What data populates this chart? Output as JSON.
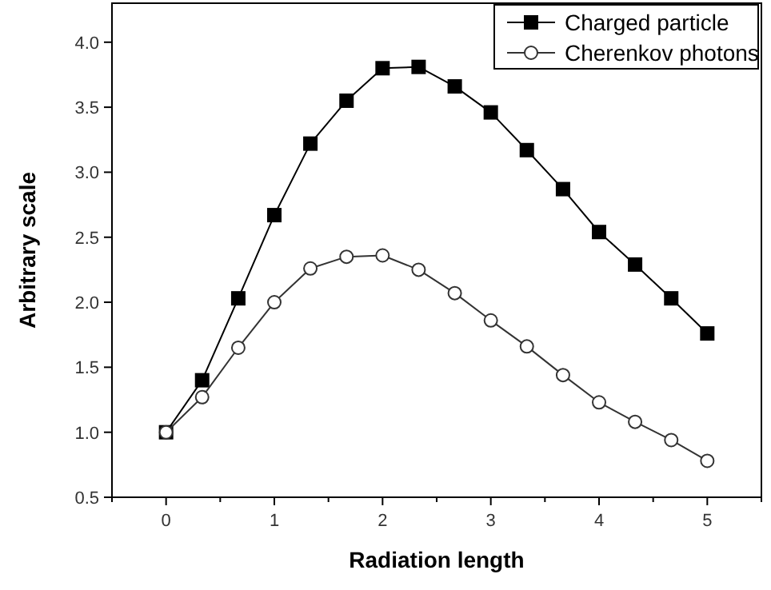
{
  "chart_data": {
    "type": "line",
    "xlabel": "Radiation length",
    "ylabel": "Arbitrary scale",
    "xlim": [
      -0.5,
      5.5
    ],
    "ylim": [
      0.5,
      4.3
    ],
    "xticks": [
      0,
      1,
      2,
      3,
      4,
      5
    ],
    "yticks": [
      {
        "value": 0.5,
        "label": "0.5"
      },
      {
        "value": 1,
        "label": "1.0"
      },
      {
        "value": 1.5,
        "label": "1.5"
      },
      {
        "value": 2,
        "label": "2.0"
      },
      {
        "value": 2.5,
        "label": "2.5"
      },
      {
        "value": 3,
        "label": "3.0"
      },
      {
        "value": 3.5,
        "label": "3.5"
      },
      {
        "value": 4,
        "label": "4.0"
      }
    ],
    "x": [
      0,
      0.333,
      0.667,
      1,
      1.333,
      1.667,
      2,
      2.333,
      2.667,
      3,
      3.333,
      3.667,
      4,
      4.333,
      4.667,
      5
    ],
    "legend": "top right",
    "grid": false,
    "series": [
      {
        "name": "Charged particle",
        "color": "#000000",
        "marker": "square",
        "values": [
          1.0,
          1.4,
          2.03,
          2.67,
          3.22,
          3.55,
          3.8,
          3.81,
          3.66,
          3.46,
          3.17,
          2.87,
          2.54,
          2.29,
          2.03,
          1.76
        ]
      },
      {
        "name": "Cherenkov photons",
        "color": "#333333",
        "marker": "circle",
        "values": [
          1.0,
          1.27,
          1.65,
          2.0,
          2.26,
          2.35,
          2.36,
          2.25,
          2.07,
          1.86,
          1.66,
          1.44,
          1.23,
          1.08,
          0.94,
          0.78
        ]
      }
    ]
  }
}
